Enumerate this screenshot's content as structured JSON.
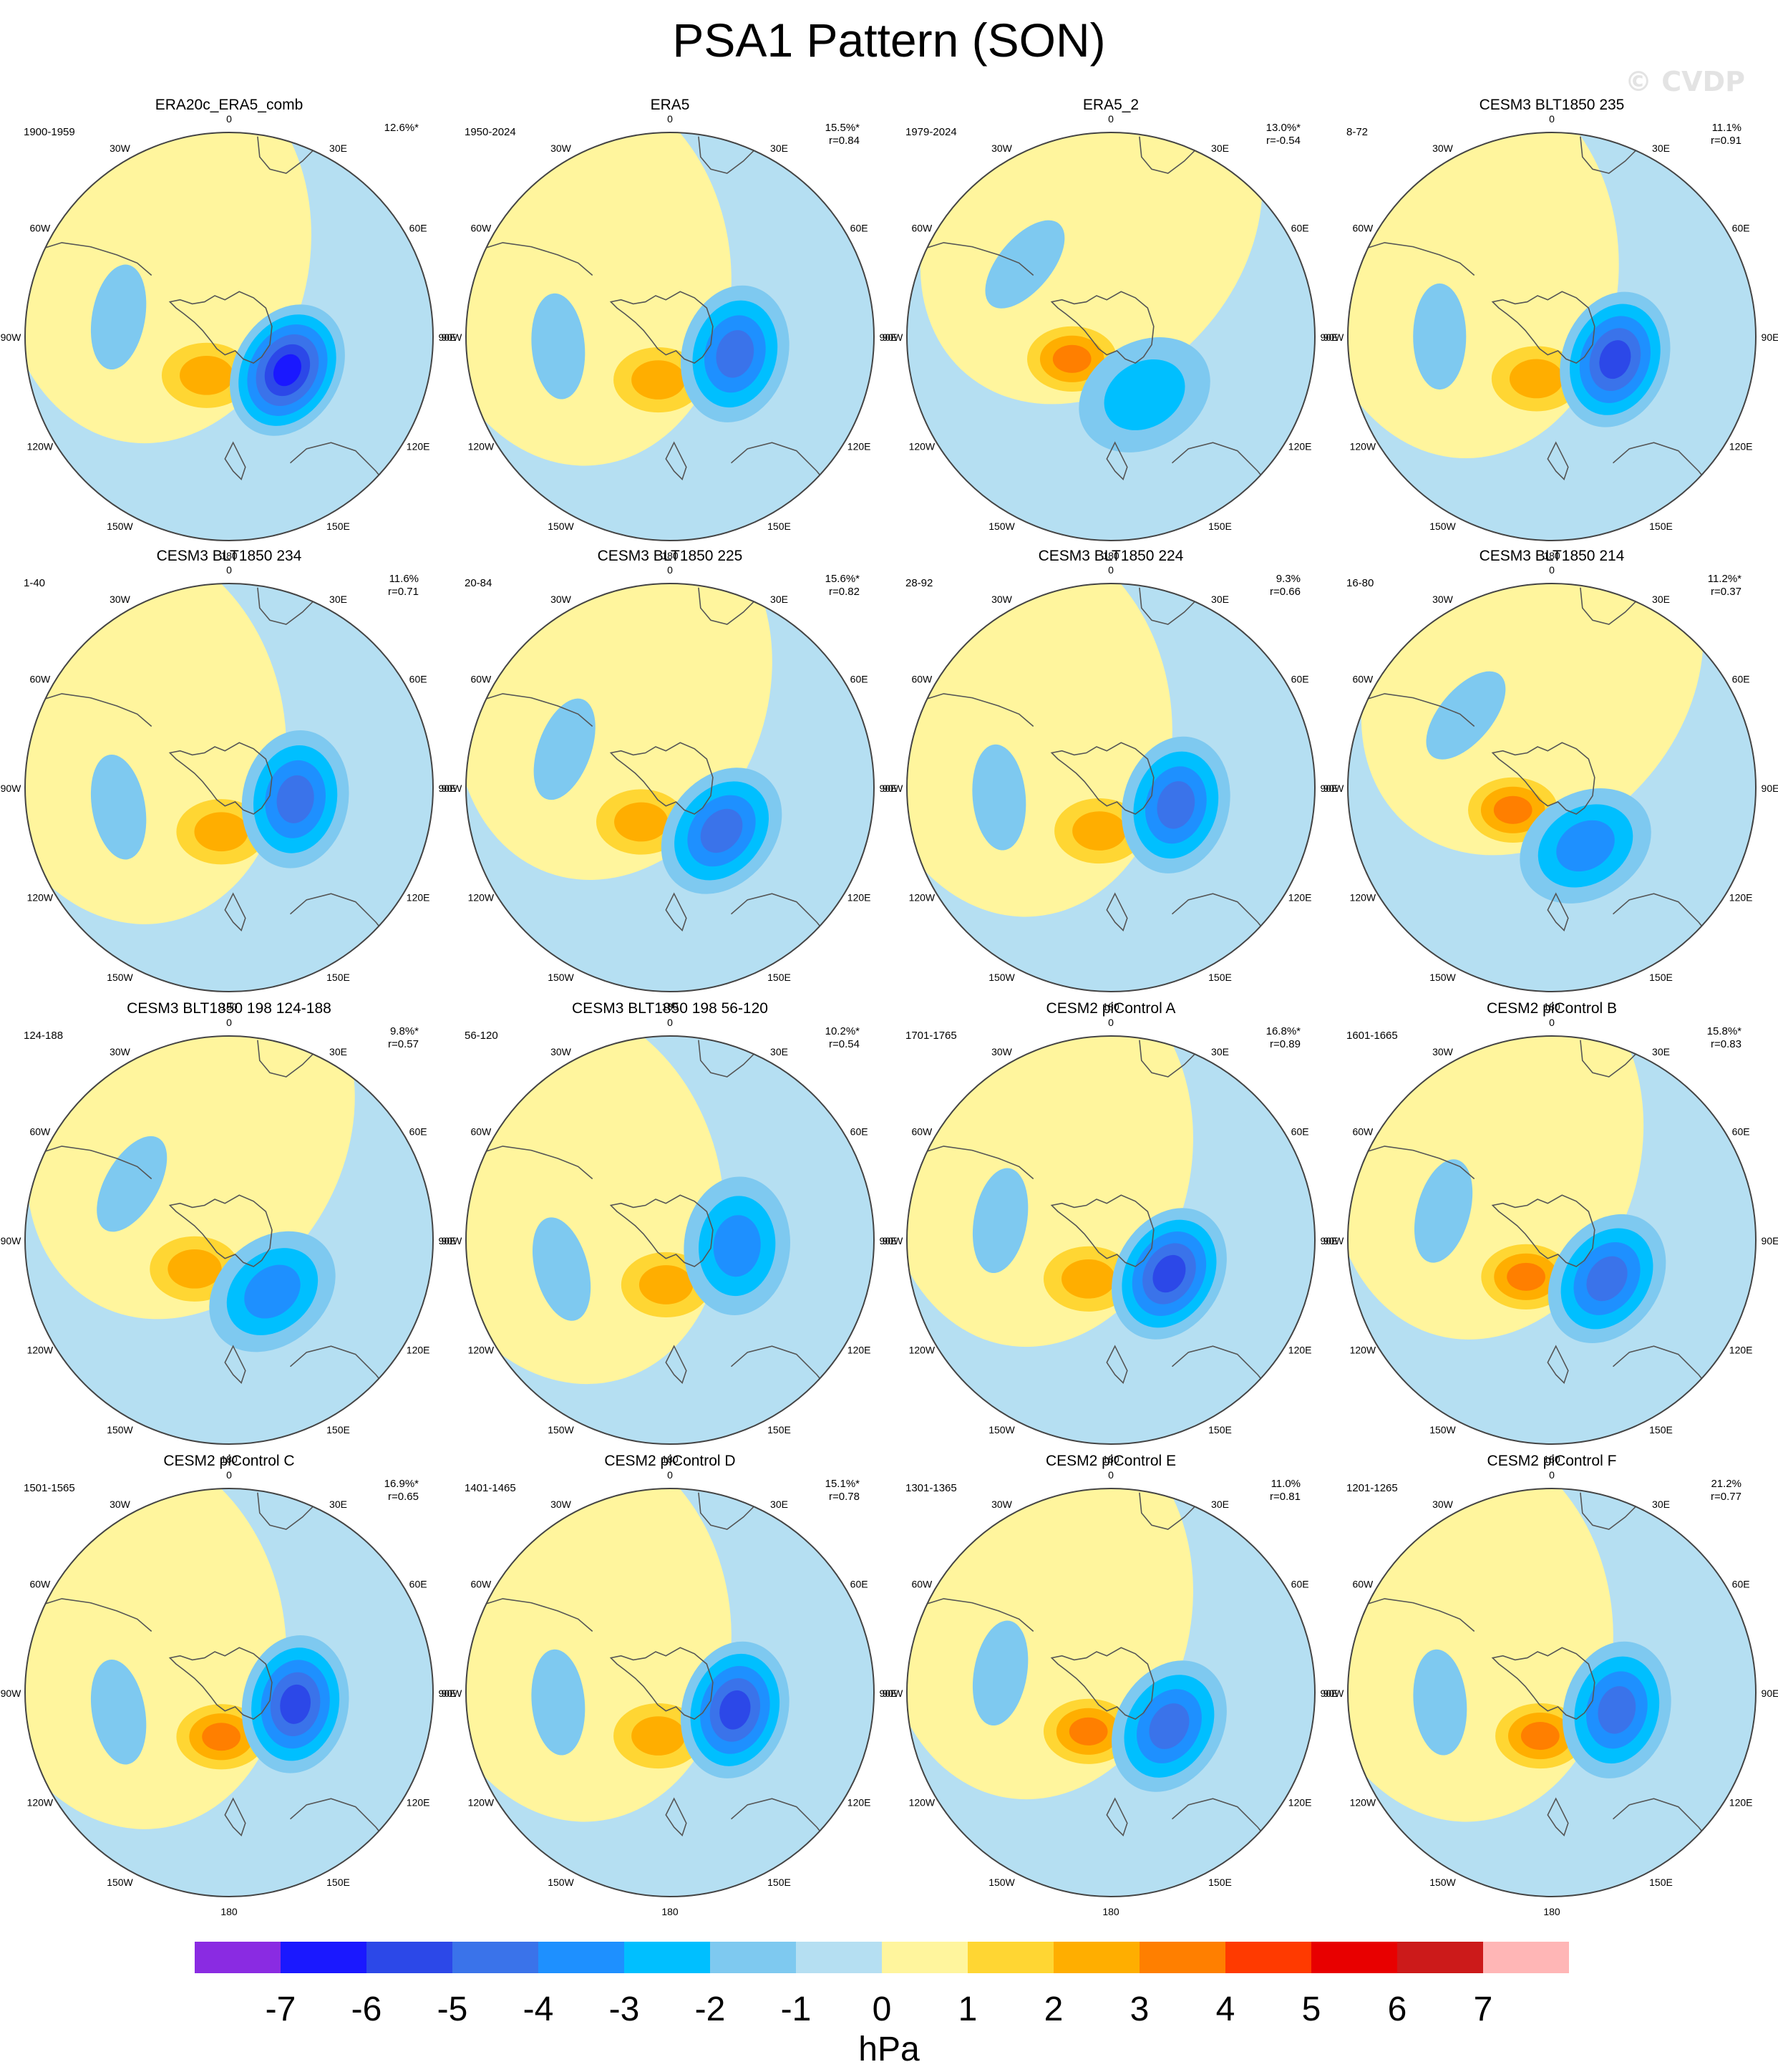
{
  "page": {
    "title": "PSA1 Pattern (SON)",
    "watermark": "© CVDP"
  },
  "chart_data": {
    "type": "contour-map-panels",
    "projection": "south-polar-stereographic",
    "longitude_labels": [
      "0",
      "30E",
      "60E",
      "90E",
      "120E",
      "150E",
      "180",
      "150W",
      "120W",
      "90W",
      "60W",
      "30W"
    ],
    "colorbar": {
      "label": "hPa",
      "ticks": [
        "-7",
        "-6",
        "-5",
        "-4",
        "-3",
        "-2",
        "-1",
        "0",
        "1",
        "2",
        "3",
        "4",
        "5",
        "6",
        "7"
      ],
      "colors": [
        "#8a2be2",
        "#1a18ff",
        "#2c48e8",
        "#3a73ea",
        "#1e90ff",
        "#00bfff",
        "#7ec9f0",
        "#b5dff2",
        "#fff59d",
        "#ffd633",
        "#ffae00",
        "#ff7f00",
        "#ff3a00",
        "#e80000",
        "#cc1a1a",
        "#ffb6b6"
      ]
    },
    "panels": [
      {
        "title": "ERA20c_ERA5_comb",
        "period": "1900-1959",
        "pct": "12.6%*",
        "r": "",
        "low_min": -5.5,
        "low_lon": 120,
        "high_max": 2
      },
      {
        "title": "ERA5",
        "period": "1950-2024",
        "pct": "15.5%*",
        "r": "r=0.84",
        "low_min": -4,
        "low_lon": 105,
        "high_max": 2
      },
      {
        "title": "ERA5_2",
        "period": "1979-2024",
        "pct": "13.0%*",
        "r": "r=-0.54",
        "low_min": -2,
        "low_lon": 150,
        "high_max": 3
      },
      {
        "title": "CESM3 BLT1850 235",
        "period": "8-72",
        "pct": "11.1%",
        "r": "r=0.91",
        "low_min": -4.5,
        "low_lon": 110,
        "high_max": 2
      },
      {
        "title": "CESM3 BLT1850 234",
        "period": "1-40",
        "pct": "11.6%",
        "r": "r=0.71",
        "low_min": -4,
        "low_lon": 100,
        "high_max": 2
      },
      {
        "title": "CESM3 BLT1850 225",
        "period": "20-84",
        "pct": "15.6%*",
        "r": "r=0.82",
        "low_min": -4,
        "low_lon": 130,
        "high_max": 2
      },
      {
        "title": "CESM3 BLT1850 224",
        "period": "28-92",
        "pct": "9.3%",
        "r": "r=0.66",
        "low_min": -4,
        "low_lon": 105,
        "high_max": 2
      },
      {
        "title": "CESM3 BLT1850 214",
        "period": "16-80",
        "pct": "11.2%*",
        "r": "r=0.37",
        "low_min": -3,
        "low_lon": 150,
        "high_max": 3
      },
      {
        "title": "CESM3 BLT1850 198 124-188",
        "period": "124-188",
        "pct": "9.8%*",
        "r": "r=0.57",
        "low_min": -3,
        "low_lon": 140,
        "high_max": 2
      },
      {
        "title": "CESM3 BLT1850 198 56-120",
        "period": "56-120",
        "pct": "10.2%*",
        "r": "r=0.54",
        "low_min": -3,
        "low_lon": 95,
        "high_max": 2
      },
      {
        "title": "CESM2 piControl A",
        "period": "1701-1765",
        "pct": "16.8%*",
        "r": "r=0.89",
        "low_min": -5,
        "low_lon": 120,
        "high_max": 2
      },
      {
        "title": "CESM2 piControl B",
        "period": "1601-1665",
        "pct": "15.8%*",
        "r": "r=0.83",
        "low_min": -4,
        "low_lon": 125,
        "high_max": 3
      },
      {
        "title": "CESM2 piControl C",
        "period": "1501-1565",
        "pct": "16.9%*",
        "r": "r=0.65",
        "low_min": -5,
        "low_lon": 100,
        "high_max": 3
      },
      {
        "title": "CESM2 piControl D",
        "period": "1401-1465",
        "pct": "15.1%*",
        "r": "r=0.78",
        "low_min": -5,
        "low_lon": 105,
        "high_max": 2
      },
      {
        "title": "CESM2 piControl E",
        "period": "1301-1365",
        "pct": "11.0%",
        "r": "r=0.81",
        "low_min": -4,
        "low_lon": 120,
        "high_max": 3
      },
      {
        "title": "CESM2 piControl F",
        "period": "1201-1265",
        "pct": "21.2%",
        "r": "r=0.77",
        "low_min": -4,
        "low_lon": 105,
        "high_max": 3
      }
    ]
  }
}
